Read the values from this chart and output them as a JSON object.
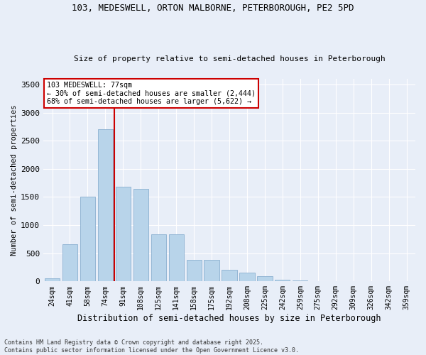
{
  "title_line1": "103, MEDESWELL, ORTON MALBORNE, PETERBOROUGH, PE2 5PD",
  "title_line2": "Size of property relative to semi-detached houses in Peterborough",
  "xlabel": "Distribution of semi-detached houses by size in Peterborough",
  "ylabel": "Number of semi-detached properties",
  "categories": [
    "24sqm",
    "41sqm",
    "58sqm",
    "74sqm",
    "91sqm",
    "108sqm",
    "125sqm",
    "141sqm",
    "158sqm",
    "175sqm",
    "192sqm",
    "208sqm",
    "225sqm",
    "242sqm",
    "259sqm",
    "275sqm",
    "292sqm",
    "309sqm",
    "326sqm",
    "342sqm",
    "359sqm"
  ],
  "values": [
    60,
    660,
    1500,
    2700,
    1680,
    1650,
    840,
    840,
    380,
    380,
    205,
    150,
    90,
    35,
    15,
    10,
    5,
    3,
    2,
    2,
    1
  ],
  "bar_color": "#b8d4ea",
  "bar_edge_color": "#8ab0d0",
  "vline_color": "#cc0000",
  "vline_xindex": 3.5,
  "annotation_title": "103 MEDESWELL: 77sqm",
  "annotation_line1": "← 30% of semi-detached houses are smaller (2,444)",
  "annotation_line2": "68% of semi-detached houses are larger (5,622) →",
  "annotation_box_facecolor": "#ffffff",
  "annotation_box_edgecolor": "#cc0000",
  "ylim": [
    0,
    3600
  ],
  "yticks": [
    0,
    500,
    1000,
    1500,
    2000,
    2500,
    3000,
    3500
  ],
  "footnote_line1": "Contains HM Land Registry data © Crown copyright and database right 2025.",
  "footnote_line2": "Contains public sector information licensed under the Open Government Licence v3.0.",
  "background_color": "#e8eef8",
  "plot_bg_color": "#e8eef8",
  "grid_color": "#ffffff"
}
